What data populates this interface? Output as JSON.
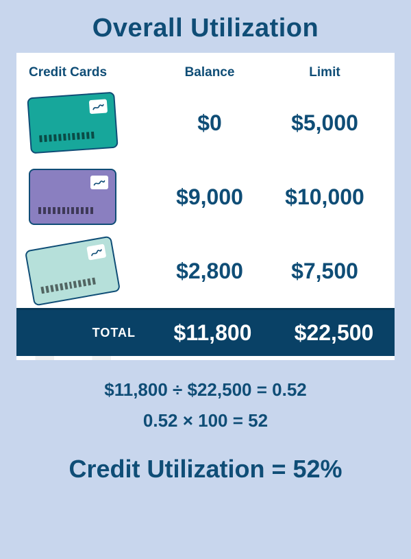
{
  "colors": {
    "page_bg": "#c8d6ed",
    "text": "#0f4d76",
    "panel_bg": "#ffffff",
    "total_band_bg": "#094166",
    "card_border": "#0f4d76"
  },
  "title": "Overall Utilization",
  "table": {
    "headers": {
      "cards": "Credit Cards",
      "balance": "Balance",
      "limit": "Limit"
    },
    "rows": [
      {
        "card_color": "#17a79b",
        "card_rotate": -4,
        "balance": "$0",
        "limit": "$5,000"
      },
      {
        "card_color": "#8a7fc0",
        "card_rotate": 0,
        "balance": "$9,000",
        "limit": "$10,000"
      },
      {
        "card_color": "#b6e0da",
        "card_rotate": -10,
        "balance": "$2,800",
        "limit": "$7,500"
      }
    ],
    "total": {
      "label": "TOTAL",
      "balance": "$11,800",
      "limit": "$22,500"
    }
  },
  "calc": {
    "line1": "$11,800   ÷   $22,500   =   0.52",
    "line2": "0.52   ×   100   =   52"
  },
  "result": "Credit Utilization = 52%"
}
